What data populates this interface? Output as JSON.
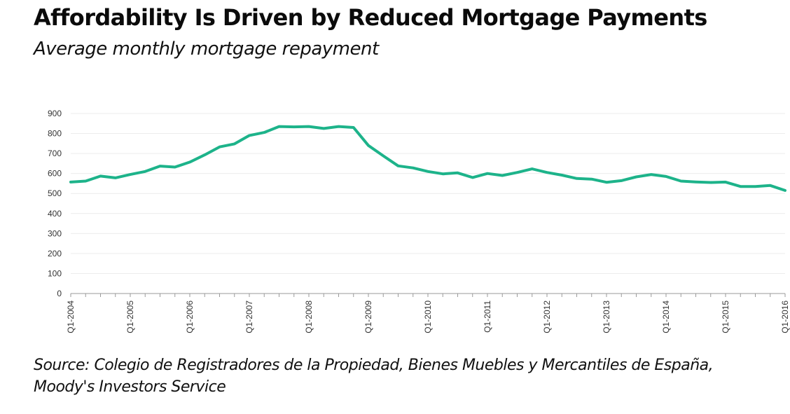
{
  "header": {
    "title": "Affordability Is Driven by Reduced Mortgage Payments",
    "subtitle": "Average monthly mortgage repayment"
  },
  "footer": {
    "source_line1": "Source: Colegio de Registradores de la Propiedad, Bienes Muebles y Mercantiles de España,",
    "source_line2": "Moody's Investors Service"
  },
  "colors": {
    "line": "#1db38a",
    "grid": "#ececec",
    "axis": "#9a9a9a"
  },
  "chart_data": {
    "type": "line",
    "title": "Affordability Is Driven by Reduced Mortgage Payments",
    "subtitle": "Average monthly mortgage repayment",
    "xlabel": "",
    "ylabel": "",
    "ylim": [
      0,
      900
    ],
    "yticks": [
      0,
      100,
      200,
      300,
      400,
      500,
      600,
      700,
      800,
      900
    ],
    "grid": true,
    "legend": null,
    "x_tick_labels": [
      "Q1-2004",
      "Q1-2005",
      "Q1-2006",
      "Q1-2007",
      "Q1-2008",
      "Q1-2009",
      "Q1-2010",
      "Q1-2011",
      "Q1-2012",
      "Q1-2013",
      "Q1-2014",
      "Q1-2015",
      "Q1-2016"
    ],
    "x": [
      "Q1-2004",
      "Q2-2004",
      "Q3-2004",
      "Q4-2004",
      "Q1-2005",
      "Q2-2005",
      "Q3-2005",
      "Q4-2005",
      "Q1-2006",
      "Q2-2006",
      "Q3-2006",
      "Q4-2006",
      "Q1-2007",
      "Q2-2007",
      "Q3-2007",
      "Q4-2007",
      "Q1-2008",
      "Q2-2008",
      "Q3-2008",
      "Q4-2008",
      "Q1-2009",
      "Q2-2009",
      "Q3-2009",
      "Q4-2009",
      "Q1-2010",
      "Q2-2010",
      "Q3-2010",
      "Q4-2010",
      "Q1-2011",
      "Q2-2011",
      "Q3-2011",
      "Q4-2011",
      "Q1-2012",
      "Q2-2012",
      "Q3-2012",
      "Q4-2012",
      "Q1-2013",
      "Q2-2013",
      "Q3-2013",
      "Q4-2013",
      "Q1-2014",
      "Q2-2014",
      "Q3-2014",
      "Q4-2014",
      "Q1-2015",
      "Q2-2015",
      "Q3-2015",
      "Q4-2015",
      "Q1-2016"
    ],
    "series": [
      {
        "name": "Average monthly mortgage repayment",
        "color": "#1db38a",
        "values": [
          557,
          562,
          587,
          578,
          595,
          610,
          637,
          632,
          657,
          693,
          733,
          748,
          790,
          805,
          835,
          833,
          835,
          825,
          835,
          830,
          740,
          688,
          638,
          628,
          610,
          598,
          603,
          580,
          600,
          590,
          605,
          623,
          605,
          592,
          575,
          572,
          556,
          564,
          583,
          595,
          585,
          562,
          558,
          555,
          557,
          535,
          535,
          540,
          515
        ]
      }
    ],
    "source": "Colegio de Registradores de la Propiedad, Bienes Muebles y Mercantiles de España, Moody's Investors Service"
  }
}
